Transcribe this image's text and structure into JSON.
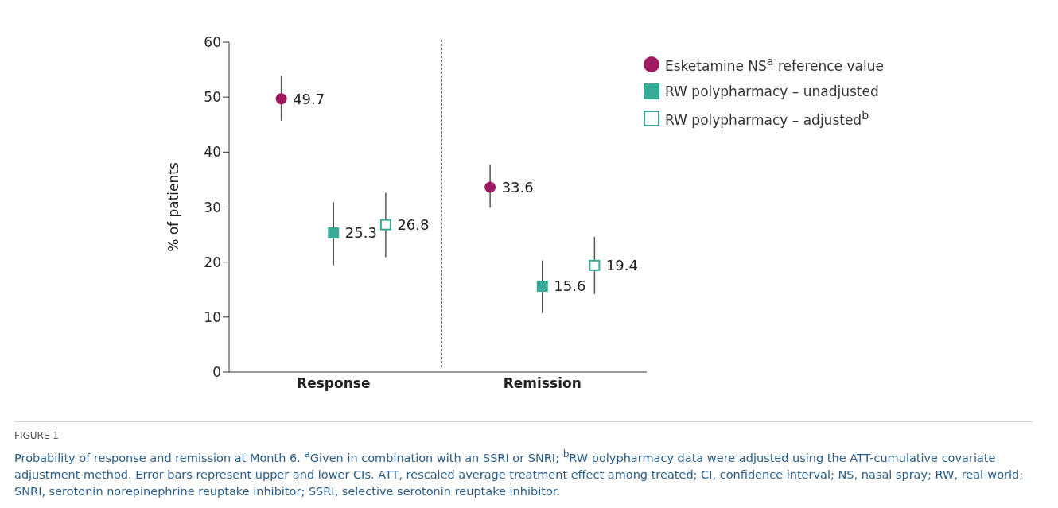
{
  "chart_data": {
    "type": "scatter",
    "categories": [
      "Response",
      "Remission"
    ],
    "ylabel": "% of patients",
    "ylim": [
      0,
      60
    ],
    "yticks": [
      0,
      10,
      20,
      30,
      40,
      50,
      60
    ],
    "grid": false,
    "legend": "top right",
    "data_labels": true,
    "series": [
      {
        "name": "Esketamine NS$^{a}$ reference value",
        "color": "#a0185f",
        "marker": "circle",
        "values": [
          49.7,
          33.6
        ],
        "errors": [
          [
            45.7,
            53.9
          ],
          [
            29.9,
            37.7
          ]
        ]
      },
      {
        "name": "RW polypharmacy – unadjusted",
        "color": "#3aaa98",
        "marker": "square",
        "values": [
          25.3,
          15.6
        ],
        "errors": [
          [
            19.4,
            30.9
          ],
          [
            10.7,
            20.3
          ]
        ]
      },
      {
        "name": "RW polypharmacy – adjusted$^{b}$",
        "color": "#3aaa98",
        "marker": "square-open",
        "values": [
          26.8,
          19.4
        ],
        "errors": [
          [
            20.9,
            32.6
          ],
          [
            14.2,
            24.6
          ]
        ]
      }
    ],
    "annotations": [
      "FIGURE 1",
      "Probability of response and remission at Month 6. $^{a}$Given in combination with an SSRI or SNRI; $^{b}$RW polypharmacy data were adjusted using the ATT-cumulative covariate adjustment method. Error bars represent upper and lower CIs. ATT, rescaled average treatment effect among treated; CI, confidence interval; NS, nasal spray; RW, real-world; SNRI, serotonin norepinephrine reuptake inhibitor; SSRI, selective serotonin reuptake inhibitor."
    ]
  }
}
